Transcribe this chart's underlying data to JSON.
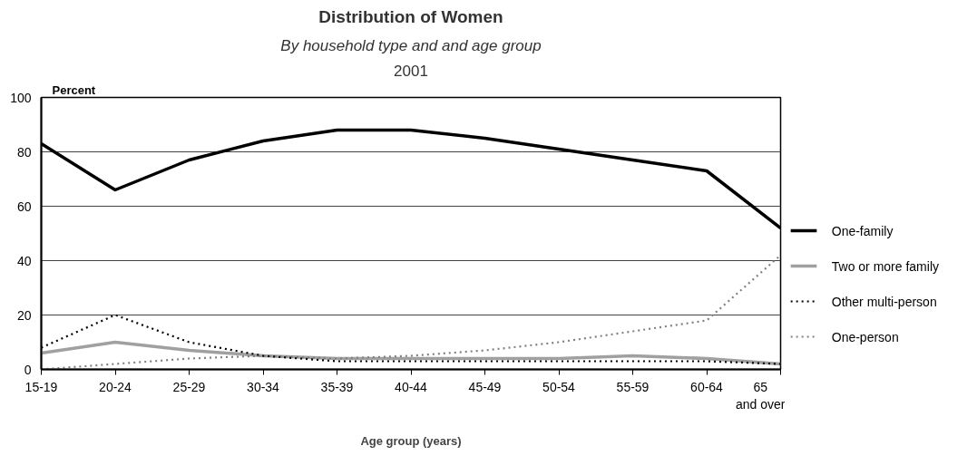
{
  "chart_data": {
    "type": "line",
    "title": "Distribution of Women",
    "subtitle": "By household type and and age group",
    "annotations": [
      "2001"
    ],
    "xlabel": "Age group (years)",
    "ylabel": "Percent",
    "categories": [
      "15-19",
      "20-24",
      "25-29",
      "30-34",
      "35-39",
      "40-44",
      "45-49",
      "50-54",
      "55-59",
      "60-64",
      "65\nand over"
    ],
    "ylim": [
      0,
      100
    ],
    "yticks": [
      0,
      20,
      40,
      60,
      80,
      100
    ],
    "grid": "y",
    "legend": "right",
    "marker": "none",
    "series": [
      {
        "name": "One-family",
        "color": "#000000",
        "line_style": "solid",
        "values": [
          83,
          66,
          77,
          84,
          88,
          88,
          85,
          81,
          77,
          73,
          52
        ]
      },
      {
        "name": "Two or more family",
        "color": "#a0a0a0",
        "line_style": "solid",
        "values": [
          6,
          10,
          7,
          5,
          4,
          4,
          4,
          4,
          5,
          4,
          2
        ]
      },
      {
        "name": "Other multi-person",
        "color": "#000000",
        "line_style": "dotted",
        "values": [
          8,
          20,
          10,
          5,
          3,
          3,
          3,
          3,
          3,
          3,
          2
        ]
      },
      {
        "name": "One-person",
        "color": "#808080",
        "line_style": "dotted",
        "values": [
          0,
          2,
          4,
          5,
          4,
          5,
          7,
          10,
          14,
          18,
          42
        ]
      }
    ]
  }
}
